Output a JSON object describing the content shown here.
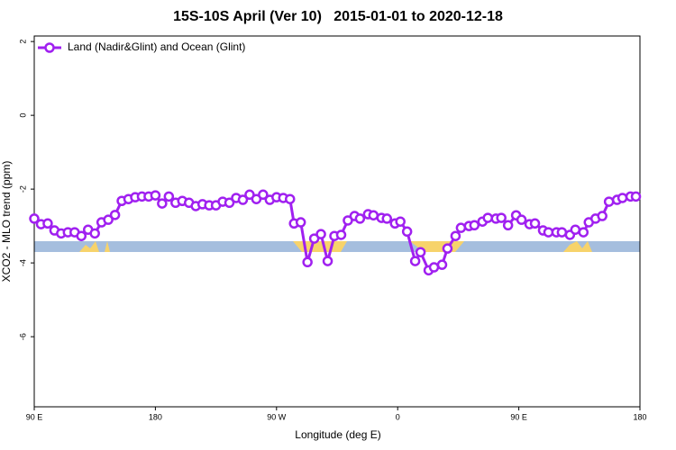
{
  "chart_data": {
    "type": "line",
    "title": "15S-10S April (Ver 10)   2015-01-01 to 2020-12-18",
    "xlabel": "Longitude (deg E)",
    "ylabel": "XCO2 - MLO trend (ppm)",
    "xlim": [
      90,
      540
    ],
    "ylim": [
      -7.9,
      2.15
    ],
    "xticks": [
      {
        "value": 90,
        "label": "90 E"
      },
      180,
      {
        "value": 270,
        "label": "90 W"
      },
      {
        "value": 360,
        "label": "0"
      },
      {
        "value": 450,
        "label": "90 E"
      },
      {
        "value": 540,
        "label": "180"
      }
    ],
    "yticks": [
      2,
      0,
      -2,
      -4,
      -6
    ],
    "legend": "upper left",
    "x": [
      90,
      95,
      100,
      105,
      110,
      115,
      120,
      125,
      130,
      135,
      140,
      145,
      150,
      155,
      160,
      165,
      170,
      175,
      180,
      185,
      190,
      195,
      200,
      205,
      210,
      215,
      220,
      225,
      230,
      235,
      240,
      245,
      250,
      255,
      260,
      265,
      270,
      275,
      280,
      283,
      288,
      293,
      298,
      303,
      308,
      313,
      318,
      323,
      328,
      332,
      338,
      342,
      348,
      352,
      358,
      362,
      367,
      373,
      377,
      383,
      387,
      393,
      397,
      403,
      407,
      413,
      417,
      423,
      427,
      433,
      437,
      442,
      448,
      452,
      458,
      462,
      468,
      472,
      478,
      482,
      488,
      492,
      498,
      502,
      507,
      512,
      517,
      523,
      527,
      533,
      537
    ],
    "series": [
      {
        "name": "Land (Nadir&Glint) and Ocean (Glint)",
        "color": "#a020f0",
        "values": [
          -2.8,
          -2.95,
          -2.93,
          -3.12,
          -3.2,
          -3.17,
          -3.17,
          -3.27,
          -3.1,
          -3.2,
          -2.9,
          -2.83,
          -2.7,
          -2.32,
          -2.27,
          -2.22,
          -2.2,
          -2.2,
          -2.17,
          -2.39,
          -2.2,
          -2.37,
          -2.32,
          -2.37,
          -2.46,
          -2.41,
          -2.44,
          -2.44,
          -2.34,
          -2.37,
          -2.24,
          -2.29,
          -2.15,
          -2.27,
          -2.15,
          -2.29,
          -2.22,
          -2.24,
          -2.27,
          -2.93,
          -2.9,
          -3.98,
          -3.34,
          -3.22,
          -3.95,
          -3.27,
          -3.24,
          -2.85,
          -2.73,
          -2.8,
          -2.68,
          -2.71,
          -2.78,
          -2.8,
          -2.93,
          -2.88,
          -3.15,
          -3.95,
          -3.71,
          -4.2,
          -4.12,
          -4.05,
          -3.61,
          -3.27,
          -3.05,
          -3.0,
          -2.98,
          -2.88,
          -2.78,
          -2.8,
          -2.78,
          -2.98,
          -2.71,
          -2.83,
          -2.95,
          -2.93,
          -3.12,
          -3.17,
          -3.17,
          -3.17,
          -3.24,
          -3.1,
          -3.17,
          -2.9,
          -2.8,
          -2.73,
          -2.34,
          -2.29,
          -2.24,
          -2.2,
          -2.2
        ]
      }
    ]
  }
}
